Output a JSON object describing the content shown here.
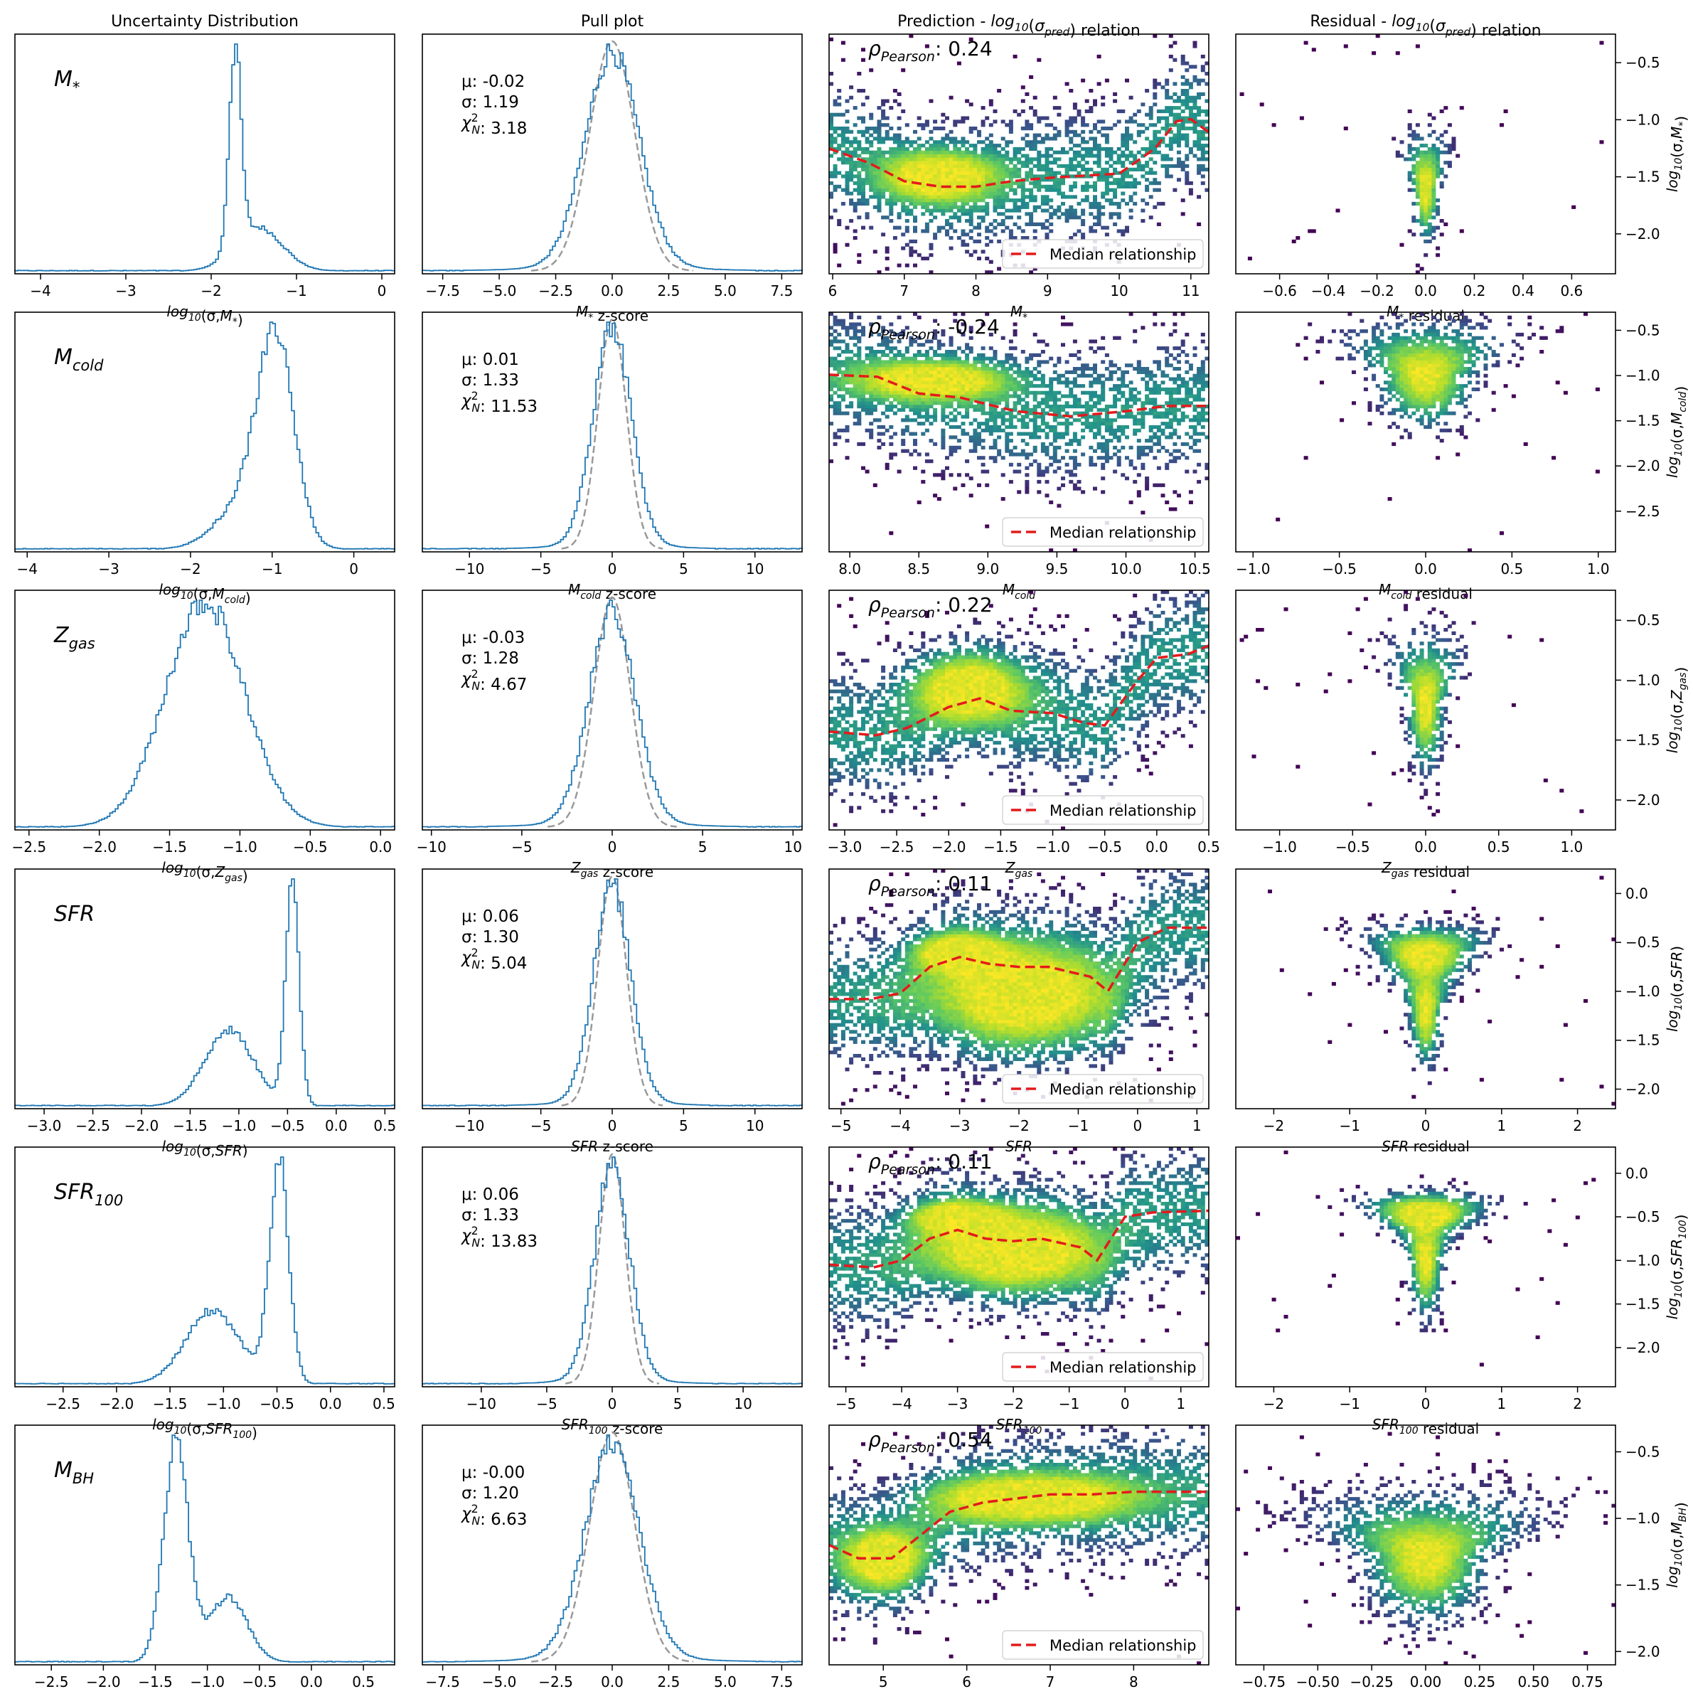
{
  "column_titles": [
    "Uncertainty Distribution",
    "Pull plot",
    "Prediction - log10(σpred) relation",
    "Residual - log10(σpred) relation"
  ],
  "legend_label": "Median relationship",
  "pearson_prefix": "ρPearson:",
  "colors": {
    "hist_line": "#1f77b4",
    "gaussian": "#999999",
    "median": "#e41a1c",
    "viridis": [
      "#440154",
      "#3b528b",
      "#21918c",
      "#5ec962",
      "#b5de2b",
      "#fde725"
    ]
  },
  "chart_data": [
    {
      "type": "histogram",
      "variable": "M*",
      "panel_label": "M*",
      "xlabel": "log10(σ,M*)",
      "xlim": [
        -4.3,
        0.15
      ],
      "xticks": [
        "−4",
        "−3",
        "−2",
        "−1",
        "0"
      ],
      "xtick_values": [
        -4,
        -3,
        -2,
        -1,
        0
      ],
      "components": [
        {
          "mu": -1.72,
          "s": 0.07,
          "w": 1.0
        },
        {
          "mu": -1.45,
          "s": 0.28,
          "w": 0.22
        }
      ],
      "yticks": [],
      "grid": false
    },
    {
      "type": "histogram",
      "variable": "M*",
      "xlabel": "M* z-score",
      "xlim": [
        -8.4,
        8.4
      ],
      "xticks": [
        "−7.5",
        "−5.0",
        "−2.5",
        "0.0",
        "2.5",
        "5.0",
        "7.5"
      ],
      "xtick_values": [
        -7.5,
        -5,
        -2.5,
        0,
        2.5,
        5,
        7.5
      ],
      "stats": [
        "μ: -0.02",
        "σ: 1.19",
        "χ²N: 3.18"
      ],
      "pull_scale": 1.19,
      "gaussian": {
        "mu": 0,
        "sigma": 1
      },
      "yticks": [],
      "grid": false
    },
    {
      "type": "heatmap",
      "variable": "M*",
      "xlabel": "M*",
      "xlim": [
        5.95,
        11.25
      ],
      "ylim": [
        -2.4,
        -0.2
      ],
      "xticks": [
        "6",
        "7",
        "8",
        "9",
        "10",
        "11"
      ],
      "xtick_values": [
        6,
        7,
        8,
        9,
        10,
        11
      ],
      "pearson": "0.24",
      "median": {
        "x": [
          5.95,
          6.5,
          7.0,
          7.5,
          8.0,
          8.5,
          9.0,
          9.5,
          10.0,
          10.5,
          10.8,
          11.0,
          11.25
        ],
        "y": [
          -1.25,
          -1.38,
          -1.55,
          -1.6,
          -1.6,
          -1.55,
          -1.52,
          -1.5,
          -1.48,
          -1.25,
          -1.0,
          -0.98,
          -1.1
        ]
      },
      "core": [
        {
          "x": 7.5,
          "y": -1.5,
          "sx": 0.5,
          "sy": 0.15
        }
      ],
      "legend": "lower-right",
      "grid": false
    },
    {
      "type": "heatmap",
      "variable": "M*",
      "xlabel": "M* residual",
      "xlim": [
        -0.78,
        0.78
      ],
      "ylim": [
        -2.35,
        -0.25
      ],
      "xticks": [
        "−0.6",
        "−0.4",
        "−0.2",
        "0.0",
        "0.2",
        "0.4",
        "0.6"
      ],
      "xtick_values": [
        -0.6,
        -0.4,
        -0.2,
        0,
        0.2,
        0.4,
        0.6
      ],
      "ylabel": "log10(σ,M*)",
      "yticks": [
        "−2.0",
        "−1.5",
        "−1.0",
        "−0.5"
      ],
      "ytick_values": [
        -2.0,
        -1.5,
        -1.0,
        -0.5
      ],
      "yaxis": "right",
      "core": [
        {
          "x": 0,
          "y": -1.6,
          "sx": 0.03,
          "sy": 0.25
        }
      ],
      "grid": false
    },
    {
      "type": "histogram",
      "variable": "Mcold",
      "panel_label": "Mcold",
      "xlabel": "log10(σ,Mcold)",
      "xlim": [
        -4.15,
        0.5
      ],
      "xticks": [
        "−4",
        "−3",
        "−2",
        "−1",
        "0"
      ],
      "xtick_values": [
        -4,
        -3,
        -2,
        -1,
        0
      ],
      "components": [
        {
          "mu": -0.95,
          "s": 0.22,
          "w": 1.0
        },
        {
          "mu": -1.3,
          "s": 0.35,
          "w": 0.25
        }
      ],
      "yticks": [],
      "grid": false
    },
    {
      "type": "histogram",
      "variable": "Mcold",
      "xlabel": "Mcold z-score",
      "xlim": [
        -13.3,
        13.3
      ],
      "xticks": [
        "−10",
        "−5",
        "0",
        "5",
        "10"
      ],
      "xtick_values": [
        -10,
        -5,
        0,
        5,
        10
      ],
      "stats": [
        "μ: 0.01",
        "σ: 1.33",
        "χ²N: 11.53"
      ],
      "pull_scale": 1.33,
      "gaussian": {
        "mu": 0,
        "sigma": 1
      },
      "yticks": [],
      "grid": false
    },
    {
      "type": "heatmap",
      "variable": "Mcold",
      "xlabel": "Mcold",
      "xlim": [
        7.85,
        10.6
      ],
      "ylim": [
        -2.6,
        -0.3
      ],
      "xticks": [
        "8.0",
        "8.5",
        "9.0",
        "9.5",
        "10.0",
        "10.5"
      ],
      "xtick_values": [
        8.0,
        8.5,
        9.0,
        9.5,
        10.0,
        10.5
      ],
      "pearson": "-0.24",
      "median": {
        "x": [
          7.85,
          8.2,
          8.5,
          8.8,
          9.2,
          9.6,
          10.0,
          10.3,
          10.6
        ],
        "y": [
          -0.9,
          -0.92,
          -1.08,
          -1.12,
          -1.25,
          -1.3,
          -1.25,
          -1.2,
          -1.2
        ]
      },
      "core": [
        {
          "x": 8.6,
          "y": -0.95,
          "sx": 0.35,
          "sy": 0.12
        }
      ],
      "legend": "lower-right",
      "grid": false
    },
    {
      "type": "heatmap",
      "variable": "Mcold",
      "xlabel": "Mcold residual",
      "xlim": [
        -1.1,
        1.1
      ],
      "ylim": [
        -2.95,
        -0.3
      ],
      "xticks": [
        "−1.0",
        "−0.5",
        "0.0",
        "0.5",
        "1.0"
      ],
      "xtick_values": [
        -1.0,
        -0.5,
        0,
        0.5,
        1.0
      ],
      "ylabel": "log10(σ,Mcold)",
      "yticks": [
        "−2.5",
        "−2.0",
        "−1.5",
        "−1.0",
        "−0.5"
      ],
      "ytick_values": [
        -2.5,
        -2.0,
        -1.5,
        -1.0,
        -0.5
      ],
      "yaxis": "right",
      "core": [
        {
          "x": 0,
          "y": -1.0,
          "sx": 0.15,
          "sy": 0.3
        }
      ],
      "grid": false
    },
    {
      "type": "histogram",
      "variable": "Zgas",
      "panel_label": "Zgas",
      "xlabel": "log10(σ,Zgas)",
      "xlim": [
        -2.6,
        0.1
      ],
      "xticks": [
        "−2.5",
        "−2.0",
        "−1.5",
        "−1.0",
        "−0.5",
        "0.0"
      ],
      "xtick_values": [
        -2.5,
        -2.0,
        -1.5,
        -1.0,
        -0.5,
        0.0
      ],
      "components": [
        {
          "mu": -1.25,
          "s": 0.28,
          "w": 1.0
        }
      ],
      "yticks": [],
      "grid": false
    },
    {
      "type": "histogram",
      "variable": "Zgas",
      "xlabel": "Zgas z-score",
      "xlim": [
        -10.5,
        10.5
      ],
      "xticks": [
        "−10",
        "−5",
        "0",
        "5",
        "10"
      ],
      "xtick_values": [
        -10,
        -5,
        0,
        5,
        10
      ],
      "stats": [
        "μ: -0.03",
        "σ: 1.28",
        "χ²N: 4.67"
      ],
      "pull_scale": 1.28,
      "gaussian": {
        "mu": 0,
        "sigma": 1
      },
      "yticks": [],
      "grid": false
    },
    {
      "type": "heatmap",
      "variable": "Zgas",
      "xlabel": "Zgas",
      "xlim": [
        -3.15,
        0.5
      ],
      "ylim": [
        -2.25,
        -0.3
      ],
      "xticks": [
        "−3.0",
        "−2.5",
        "−2.0",
        "−1.5",
        "−1.0",
        "−0.5",
        "0.0",
        "0.5"
      ],
      "xtick_values": [
        -3.0,
        -2.5,
        -2.0,
        -1.5,
        -1.0,
        -0.5,
        0.0,
        0.5
      ],
      "pearson": "0.22",
      "median": {
        "x": [
          -3.15,
          -2.7,
          -2.4,
          -2.0,
          -1.7,
          -1.4,
          -1.0,
          -0.7,
          -0.5,
          -0.2,
          0.0,
          0.3,
          0.5
        ],
        "y": [
          -1.45,
          -1.48,
          -1.42,
          -1.25,
          -1.18,
          -1.28,
          -1.3,
          -1.38,
          -1.4,
          -1.05,
          -0.85,
          -0.82,
          -0.75
        ]
      },
      "core": [
        {
          "x": -1.8,
          "y": -1.1,
          "sx": 0.35,
          "sy": 0.18
        }
      ],
      "legend": "lower-right",
      "grid": false
    },
    {
      "type": "heatmap",
      "variable": "Zgas",
      "xlabel": "Zgas residual",
      "xlim": [
        -1.3,
        1.3
      ],
      "ylim": [
        -2.25,
        -0.25
      ],
      "xticks": [
        "−1.0",
        "−0.5",
        "0.0",
        "0.5",
        "1.0"
      ],
      "xtick_values": [
        -1.0,
        -0.5,
        0,
        0.5,
        1.0
      ],
      "ylabel": "log10(σ,Zgas)",
      "yticks": [
        "−2.0",
        "−1.5",
        "−1.0",
        "−0.5"
      ],
      "ytick_values": [
        -2.0,
        -1.5,
        -1.0,
        -0.5
      ],
      "yaxis": "right",
      "core": [
        {
          "x": 0,
          "y": -1.2,
          "sx": 0.07,
          "sy": 0.3
        }
      ],
      "grid": false
    },
    {
      "type": "histogram",
      "variable": "SFR",
      "panel_label": "SFR",
      "xlabel": "log10(σ,SFR)",
      "xlim": [
        -3.3,
        0.6
      ],
      "xticks": [
        "−3.0",
        "−2.5",
        "−2.0",
        "−1.5",
        "−1.0",
        "−0.5",
        "0.0",
        "0.5"
      ],
      "xtick_values": [
        -3.0,
        -2.5,
        -2.0,
        -1.5,
        -1.0,
        -0.5,
        0.0,
        0.5
      ],
      "components": [
        {
          "mu": -0.45,
          "s": 0.07,
          "w": 1.0
        },
        {
          "mu": -1.1,
          "s": 0.25,
          "w": 0.35
        }
      ],
      "yticks": [],
      "grid": false
    },
    {
      "type": "histogram",
      "variable": "SFR",
      "xlabel": "SFR z-score",
      "xlim": [
        -13.3,
        13.3
      ],
      "xticks": [
        "−10",
        "−5",
        "0",
        "5",
        "10"
      ],
      "xtick_values": [
        -10,
        -5,
        0,
        5,
        10
      ],
      "stats": [
        "μ: 0.06",
        "σ: 1.30",
        "χ²N: 5.04"
      ],
      "pull_scale": 1.3,
      "gaussian": {
        "mu": 0,
        "sigma": 1
      },
      "yticks": [],
      "grid": false
    },
    {
      "type": "heatmap",
      "variable": "SFR",
      "xlabel": "SFR",
      "xlim": [
        -5.2,
        1.2
      ],
      "ylim": [
        -2.2,
        0.25
      ],
      "xticks": [
        "−5",
        "−4",
        "−3",
        "−2",
        "−1",
        "0",
        "1"
      ],
      "xtick_values": [
        -5,
        -4,
        -3,
        -2,
        -1,
        0,
        1
      ],
      "pearson": "0.11",
      "median": {
        "x": [
          -5.2,
          -4.5,
          -4.0,
          -3.5,
          -3.0,
          -2.5,
          -2.0,
          -1.5,
          -0.8,
          -0.5,
          0.0,
          0.5,
          1.2
        ],
        "y": [
          -1.08,
          -1.08,
          -1.02,
          -0.75,
          -0.65,
          -0.72,
          -0.75,
          -0.75,
          -0.85,
          -1.0,
          -0.5,
          -0.35,
          -0.35
        ]
      },
      "core": [
        {
          "x": -3.0,
          "y": -0.6,
          "sx": 0.45,
          "sy": 0.12
        },
        {
          "x": -2.0,
          "y": -1.1,
          "sx": 1.0,
          "sy": 0.35
        }
      ],
      "legend": "lower-right",
      "grid": false
    },
    {
      "type": "heatmap",
      "variable": "SFR",
      "xlabel": "SFR residual",
      "xlim": [
        -2.5,
        2.5
      ],
      "ylim": [
        -2.2,
        0.25
      ],
      "xticks": [
        "−2",
        "−1",
        "0",
        "1",
        "2"
      ],
      "xtick_values": [
        -2,
        -1,
        0,
        1,
        2
      ],
      "ylabel": "log10(σ,SFR)",
      "yticks": [
        "−2.0",
        "−1.5",
        "−1.0",
        "−0.5",
        "0.0"
      ],
      "ytick_values": [
        -2.0,
        -1.5,
        -1.0,
        -0.5,
        0.0
      ],
      "yaxis": "right",
      "core": [
        {
          "x": 0,
          "y": -0.6,
          "sx": 0.35,
          "sy": 0.15
        },
        {
          "x": 0,
          "y": -1.2,
          "sx": 0.12,
          "sy": 0.3
        }
      ],
      "grid": false
    },
    {
      "type": "histogram",
      "variable": "SFR100",
      "panel_label": "SFR100",
      "xlabel": "log10(σ,SFR100)",
      "xlim": [
        -2.95,
        0.6
      ],
      "xticks": [
        "−2.5",
        "−2.0",
        "−1.5",
        "−1.0",
        "−0.5",
        "0.0",
        "0.5"
      ],
      "xtick_values": [
        -2.5,
        -2.0,
        -1.5,
        -1.0,
        -0.5,
        0.0,
        0.5
      ],
      "components": [
        {
          "mu": -0.48,
          "s": 0.09,
          "w": 1.0
        },
        {
          "mu": -1.1,
          "s": 0.25,
          "w": 0.33
        }
      ],
      "yticks": [],
      "grid": false
    },
    {
      "type": "histogram",
      "variable": "SFR100",
      "xlabel": "SFR100 z-score",
      "xlim": [
        -14.5,
        14.5
      ],
      "xticks": [
        "−10",
        "−5",
        "0",
        "5",
        "10"
      ],
      "xtick_values": [
        -10,
        -5,
        0,
        5,
        10
      ],
      "stats": [
        "μ: 0.06",
        "σ: 1.33",
        "χ²N: 13.83"
      ],
      "pull_scale": 1.33,
      "gaussian": {
        "mu": 0,
        "sigma": 1
      },
      "yticks": [],
      "grid": false
    },
    {
      "type": "heatmap",
      "variable": "SFR100",
      "xlabel": "SFR100",
      "xlim": [
        -5.3,
        1.5
      ],
      "ylim": [
        -2.45,
        0.3
      ],
      "xticks": [
        "−5",
        "−4",
        "−3",
        "−2",
        "−1",
        "0",
        "1"
      ],
      "xtick_values": [
        -5,
        -4,
        -3,
        -2,
        -1,
        0,
        1
      ],
      "pearson": "0.11",
      "median": {
        "x": [
          -5.3,
          -4.5,
          -4.0,
          -3.5,
          -3.0,
          -2.5,
          -2.0,
          -1.5,
          -0.8,
          -0.5,
          0.0,
          0.5,
          1.5
        ],
        "y": [
          -1.05,
          -1.08,
          -1.0,
          -0.75,
          -0.65,
          -0.75,
          -0.78,
          -0.75,
          -0.85,
          -1.0,
          -0.5,
          -0.45,
          -0.43
        ]
      },
      "core": [
        {
          "x": -3.0,
          "y": -0.5,
          "sx": 0.5,
          "sy": 0.12
        },
        {
          "x": -2.0,
          "y": -0.9,
          "sx": 1.0,
          "sy": 0.3
        }
      ],
      "legend": "lower-right",
      "grid": false
    },
    {
      "type": "heatmap",
      "variable": "SFR100",
      "xlabel": "SFR100 residual",
      "xlim": [
        -2.5,
        2.5
      ],
      "ylim": [
        -2.45,
        0.3
      ],
      "xticks": [
        "−2",
        "−1",
        "0",
        "1",
        "2"
      ],
      "xtick_values": [
        -2,
        -1,
        0,
        1,
        2
      ],
      "ylabel": "log10(σ,SFR100)",
      "yticks": [
        "−2.0",
        "−1.5",
        "−1.0",
        "−0.5",
        "0.0"
      ],
      "ytick_values": [
        -2.0,
        -1.5,
        -1.0,
        -0.5,
        0.0
      ],
      "yaxis": "right",
      "core": [
        {
          "x": 0,
          "y": -0.45,
          "sx": 0.4,
          "sy": 0.12
        },
        {
          "x": 0,
          "y": -1.0,
          "sx": 0.12,
          "sy": 0.35
        }
      ],
      "grid": false
    },
    {
      "type": "histogram",
      "variable": "MBH",
      "panel_label": "MBH",
      "xlabel": "log10(σ,MBH)",
      "xlim": [
        -2.85,
        0.8
      ],
      "xticks": [
        "−2.5",
        "−2.0",
        "−1.5",
        "−1.0",
        "−0.5",
        "0.0",
        "0.5"
      ],
      "xtick_values": [
        -2.5,
        -2.0,
        -1.5,
        -1.0,
        -0.5,
        0.0,
        0.5
      ],
      "components": [
        {
          "mu": -1.3,
          "s": 0.12,
          "w": 1.0
        },
        {
          "mu": -0.8,
          "s": 0.18,
          "w": 0.3
        }
      ],
      "yticks": [],
      "grid": false
    },
    {
      "type": "histogram",
      "variable": "MBH",
      "xlabel": "MBH z-score",
      "xlim": [
        -8.4,
        8.4
      ],
      "xticks": [
        "−7.5",
        "−5.0",
        "−2.5",
        "0.0",
        "2.5",
        "5.0",
        "7.5"
      ],
      "xtick_values": [
        -7.5,
        -5,
        -2.5,
        0,
        2.5,
        5,
        7.5
      ],
      "stats": [
        "μ: -0.00",
        "σ: 1.20",
        "χ²N: 6.63"
      ],
      "pull_scale": 1.2,
      "gaussian": {
        "mu": 0,
        "sigma": 1
      },
      "yticks": [],
      "grid": false
    },
    {
      "type": "heatmap",
      "variable": "MBH",
      "xlabel": "MBH",
      "xlim": [
        4.35,
        8.9
      ],
      "ylim": [
        -2.1,
        -0.3
      ],
      "xticks": [
        "5",
        "6",
        "7",
        "8"
      ],
      "xtick_values": [
        5,
        6,
        7,
        8
      ],
      "pearson": "0.54",
      "median": {
        "x": [
          4.35,
          4.7,
          5.1,
          5.4,
          5.8,
          6.2,
          6.6,
          7.0,
          7.5,
          8.0,
          8.5,
          8.9
        ],
        "y": [
          -1.2,
          -1.3,
          -1.3,
          -1.15,
          -0.95,
          -0.88,
          -0.85,
          -0.82,
          -0.82,
          -0.8,
          -0.8,
          -0.8
        ]
      },
      "core": [
        {
          "x": 5.0,
          "y": -1.3,
          "sx": 0.3,
          "sy": 0.15
        },
        {
          "x": 6.8,
          "y": -0.85,
          "sx": 0.8,
          "sy": 0.12
        }
      ],
      "legend": "lower-right",
      "grid": false
    },
    {
      "type": "heatmap",
      "variable": "MBH",
      "xlabel": "MBH residual",
      "xlim": [
        -0.88,
        0.88
      ],
      "ylim": [
        -2.1,
        -0.3
      ],
      "xticks": [
        "−0.75",
        "−0.50",
        "−0.25",
        "0.00",
        "0.25",
        "0.50",
        "0.75"
      ],
      "xtick_values": [
        -0.75,
        -0.5,
        -0.25,
        0,
        0.25,
        0.5,
        0.75
      ],
      "ylabel": "log10(σ,MBH)",
      "yticks": [
        "−2.0",
        "−1.5",
        "−1.0",
        "−0.5"
      ],
      "ytick_values": [
        -2.0,
        -1.5,
        -1.0,
        -0.5
      ],
      "yaxis": "right",
      "core": [
        {
          "x": 0,
          "y": -1.3,
          "sx": 0.15,
          "sy": 0.25
        }
      ],
      "grid": false
    }
  ]
}
